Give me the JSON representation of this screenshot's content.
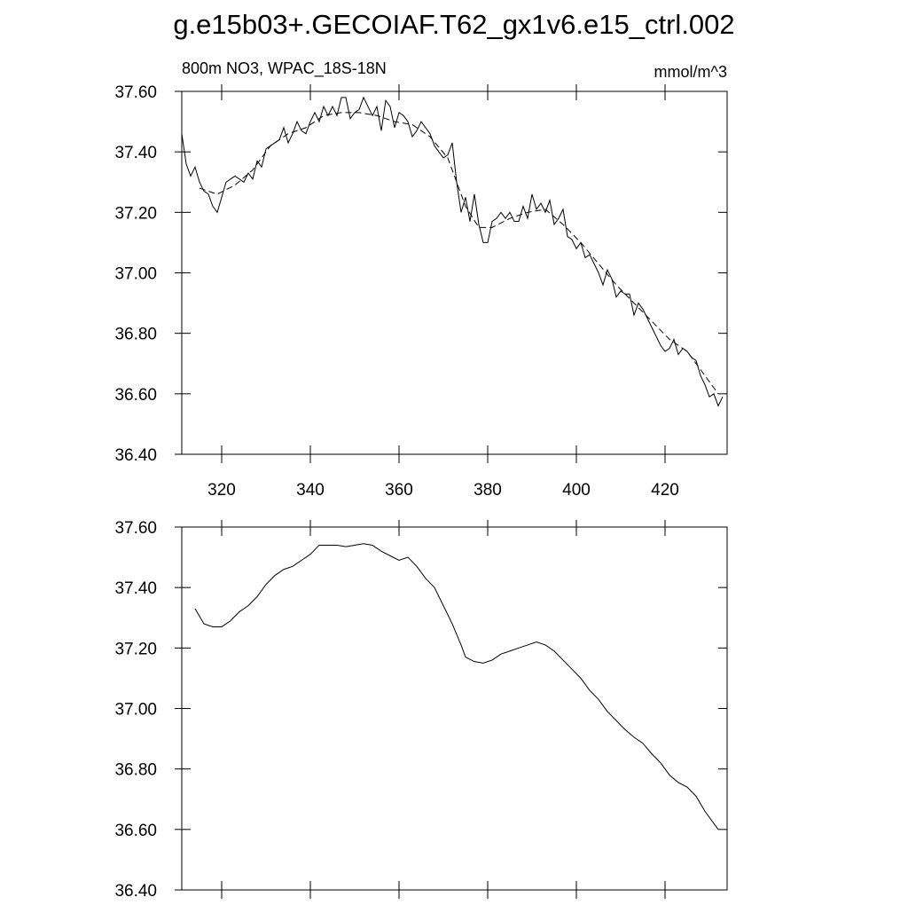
{
  "title": "g.e15b03+.GECOIAF.T62_gx1v6.e15_ctrl.002",
  "chart_data": [
    {
      "type": "line",
      "subtitle_left": "800m NO3, WPAC_18S-18N",
      "subtitle_right": "mmol/m^3",
      "xlim": [
        311,
        434
      ],
      "ylim": [
        36.4,
        37.6
      ],
      "xticks": [
        320,
        340,
        360,
        380,
        400,
        420
      ],
      "yticks": [
        {
          "value": 36.4,
          "label": "36.40"
        },
        {
          "value": 36.6,
          "label": "36.60"
        },
        {
          "value": 36.8,
          "label": "36.80"
        },
        {
          "value": 37.0,
          "label": "37.00"
        },
        {
          "value": 37.2,
          "label": "37.20"
        },
        {
          "value": 37.4,
          "label": "37.40"
        },
        {
          "value": 37.6,
          "label": "37.60"
        }
      ],
      "series": [
        {
          "color": "#000000",
          "dash": "none",
          "x": [
            311,
            312,
            313,
            314,
            315,
            316,
            317,
            318,
            319,
            320,
            321,
            322,
            323,
            324,
            325,
            326,
            327,
            328,
            329,
            330,
            331,
            332,
            333,
            334,
            335,
            336,
            337,
            338,
            339,
            340,
            341,
            342,
            343,
            344,
            345,
            346,
            347,
            348,
            349,
            350,
            351,
            352,
            353,
            354,
            355,
            356,
            357,
            358,
            359,
            360,
            361,
            362,
            363,
            364,
            365,
            366,
            367,
            368,
            369,
            370,
            371,
            372,
            373,
            374,
            375,
            376,
            377,
            378,
            379,
            380,
            381,
            382,
            383,
            384,
            385,
            386,
            387,
            388,
            389,
            390,
            391,
            392,
            393,
            394,
            395,
            396,
            397,
            398,
            399,
            400,
            401,
            402,
            403,
            404,
            405,
            406,
            407,
            408,
            409,
            410,
            411,
            412,
            413,
            414,
            415,
            416,
            417,
            418,
            419,
            420,
            421,
            422,
            423,
            424,
            425,
            426,
            427,
            428,
            429,
            430,
            431,
            432,
            433
          ],
          "values": [
            37.46,
            37.36,
            37.32,
            37.35,
            37.3,
            37.27,
            37.26,
            37.22,
            37.2,
            37.25,
            37.3,
            37.31,
            37.32,
            37.31,
            37.3,
            37.33,
            37.31,
            37.37,
            37.35,
            37.41,
            37.42,
            37.43,
            37.44,
            37.48,
            37.43,
            37.46,
            37.5,
            37.47,
            37.46,
            37.5,
            37.53,
            37.5,
            37.55,
            37.52,
            37.55,
            37.52,
            37.58,
            37.58,
            37.51,
            37.53,
            37.54,
            37.58,
            37.55,
            37.52,
            37.55,
            37.47,
            37.57,
            37.55,
            37.48,
            37.53,
            37.52,
            37.5,
            37.45,
            37.47,
            37.5,
            37.48,
            37.46,
            37.42,
            37.4,
            37.38,
            37.39,
            37.43,
            37.3,
            37.2,
            37.25,
            37.17,
            37.26,
            37.16,
            37.1,
            37.1,
            37.17,
            37.18,
            37.2,
            37.18,
            37.2,
            37.17,
            37.17,
            37.22,
            37.18,
            37.26,
            37.21,
            37.23,
            37.2,
            37.24,
            37.16,
            37.18,
            37.21,
            37.12,
            37.11,
            37.08,
            37.1,
            37.05,
            37.06,
            37.03,
            37.0,
            36.96,
            37.01,
            36.98,
            36.92,
            36.94,
            36.93,
            36.93,
            36.86,
            36.9,
            36.88,
            36.85,
            36.82,
            36.79,
            36.76,
            36.74,
            36.75,
            36.78,
            36.73,
            36.75,
            36.74,
            36.72,
            36.71,
            36.66,
            36.63,
            36.59,
            36.6,
            36.56,
            36.59
          ]
        },
        {
          "color": "#000000",
          "dash": "7 4",
          "x": [
            315,
            319,
            323,
            327,
            331,
            335,
            339,
            343,
            347,
            351,
            355,
            359,
            363,
            367,
            371,
            375,
            378,
            381,
            385,
            389,
            393,
            397,
            401,
            405,
            409,
            413,
            417,
            421,
            425,
            429,
            432
          ],
          "values": [
            37.28,
            37.26,
            37.29,
            37.34,
            37.42,
            37.46,
            37.48,
            37.52,
            37.53,
            37.53,
            37.52,
            37.5,
            37.49,
            37.45,
            37.38,
            37.22,
            37.15,
            37.15,
            37.18,
            37.2,
            37.21,
            37.16,
            37.1,
            37.03,
            36.96,
            36.9,
            36.84,
            36.78,
            36.74,
            36.66,
            36.6
          ]
        }
      ]
    },
    {
      "type": "line",
      "xlim": [
        311,
        434
      ],
      "ylim": [
        36.4,
        37.6
      ],
      "xticks": [
        320,
        340,
        360,
        380,
        400,
        420
      ],
      "yticks": [
        {
          "value": 36.4,
          "label": "36.40"
        },
        {
          "value": 36.6,
          "label": "36.60"
        },
        {
          "value": 36.8,
          "label": "36.80"
        },
        {
          "value": 37.0,
          "label": "37.00"
        },
        {
          "value": 37.2,
          "label": "37.20"
        },
        {
          "value": 37.4,
          "label": "37.40"
        },
        {
          "value": 37.6,
          "label": "37.60"
        }
      ],
      "series": [
        {
          "color": "#000000",
          "dash": "none",
          "x": [
            314,
            316,
            318,
            320,
            322,
            324,
            326,
            328,
            330,
            332,
            334,
            336,
            338,
            340,
            342,
            344,
            346,
            348,
            350,
            352,
            354,
            356,
            358,
            360,
            362,
            364,
            366,
            368,
            370,
            372,
            374,
            375,
            377,
            379,
            381,
            383,
            385,
            387,
            389,
            391,
            393,
            395,
            397,
            399,
            401,
            403,
            405,
            407,
            409,
            411,
            413,
            415,
            417,
            419,
            421,
            423,
            425,
            427,
            429,
            431,
            432
          ],
          "values": [
            37.33,
            37.28,
            37.27,
            37.27,
            37.29,
            37.32,
            37.34,
            37.37,
            37.41,
            37.44,
            37.46,
            37.47,
            37.49,
            37.51,
            37.54,
            37.54,
            37.54,
            37.535,
            37.54,
            37.545,
            37.54,
            37.52,
            37.505,
            37.49,
            37.5,
            37.47,
            37.43,
            37.4,
            37.34,
            37.28,
            37.21,
            37.17,
            37.155,
            37.15,
            37.16,
            37.18,
            37.19,
            37.2,
            37.21,
            37.22,
            37.21,
            37.19,
            37.16,
            37.13,
            37.1,
            37.06,
            37.03,
            36.99,
            36.96,
            36.93,
            36.905,
            36.885,
            36.85,
            36.82,
            36.78,
            36.755,
            36.74,
            36.71,
            36.66,
            36.62,
            36.6
          ]
        }
      ]
    }
  ]
}
